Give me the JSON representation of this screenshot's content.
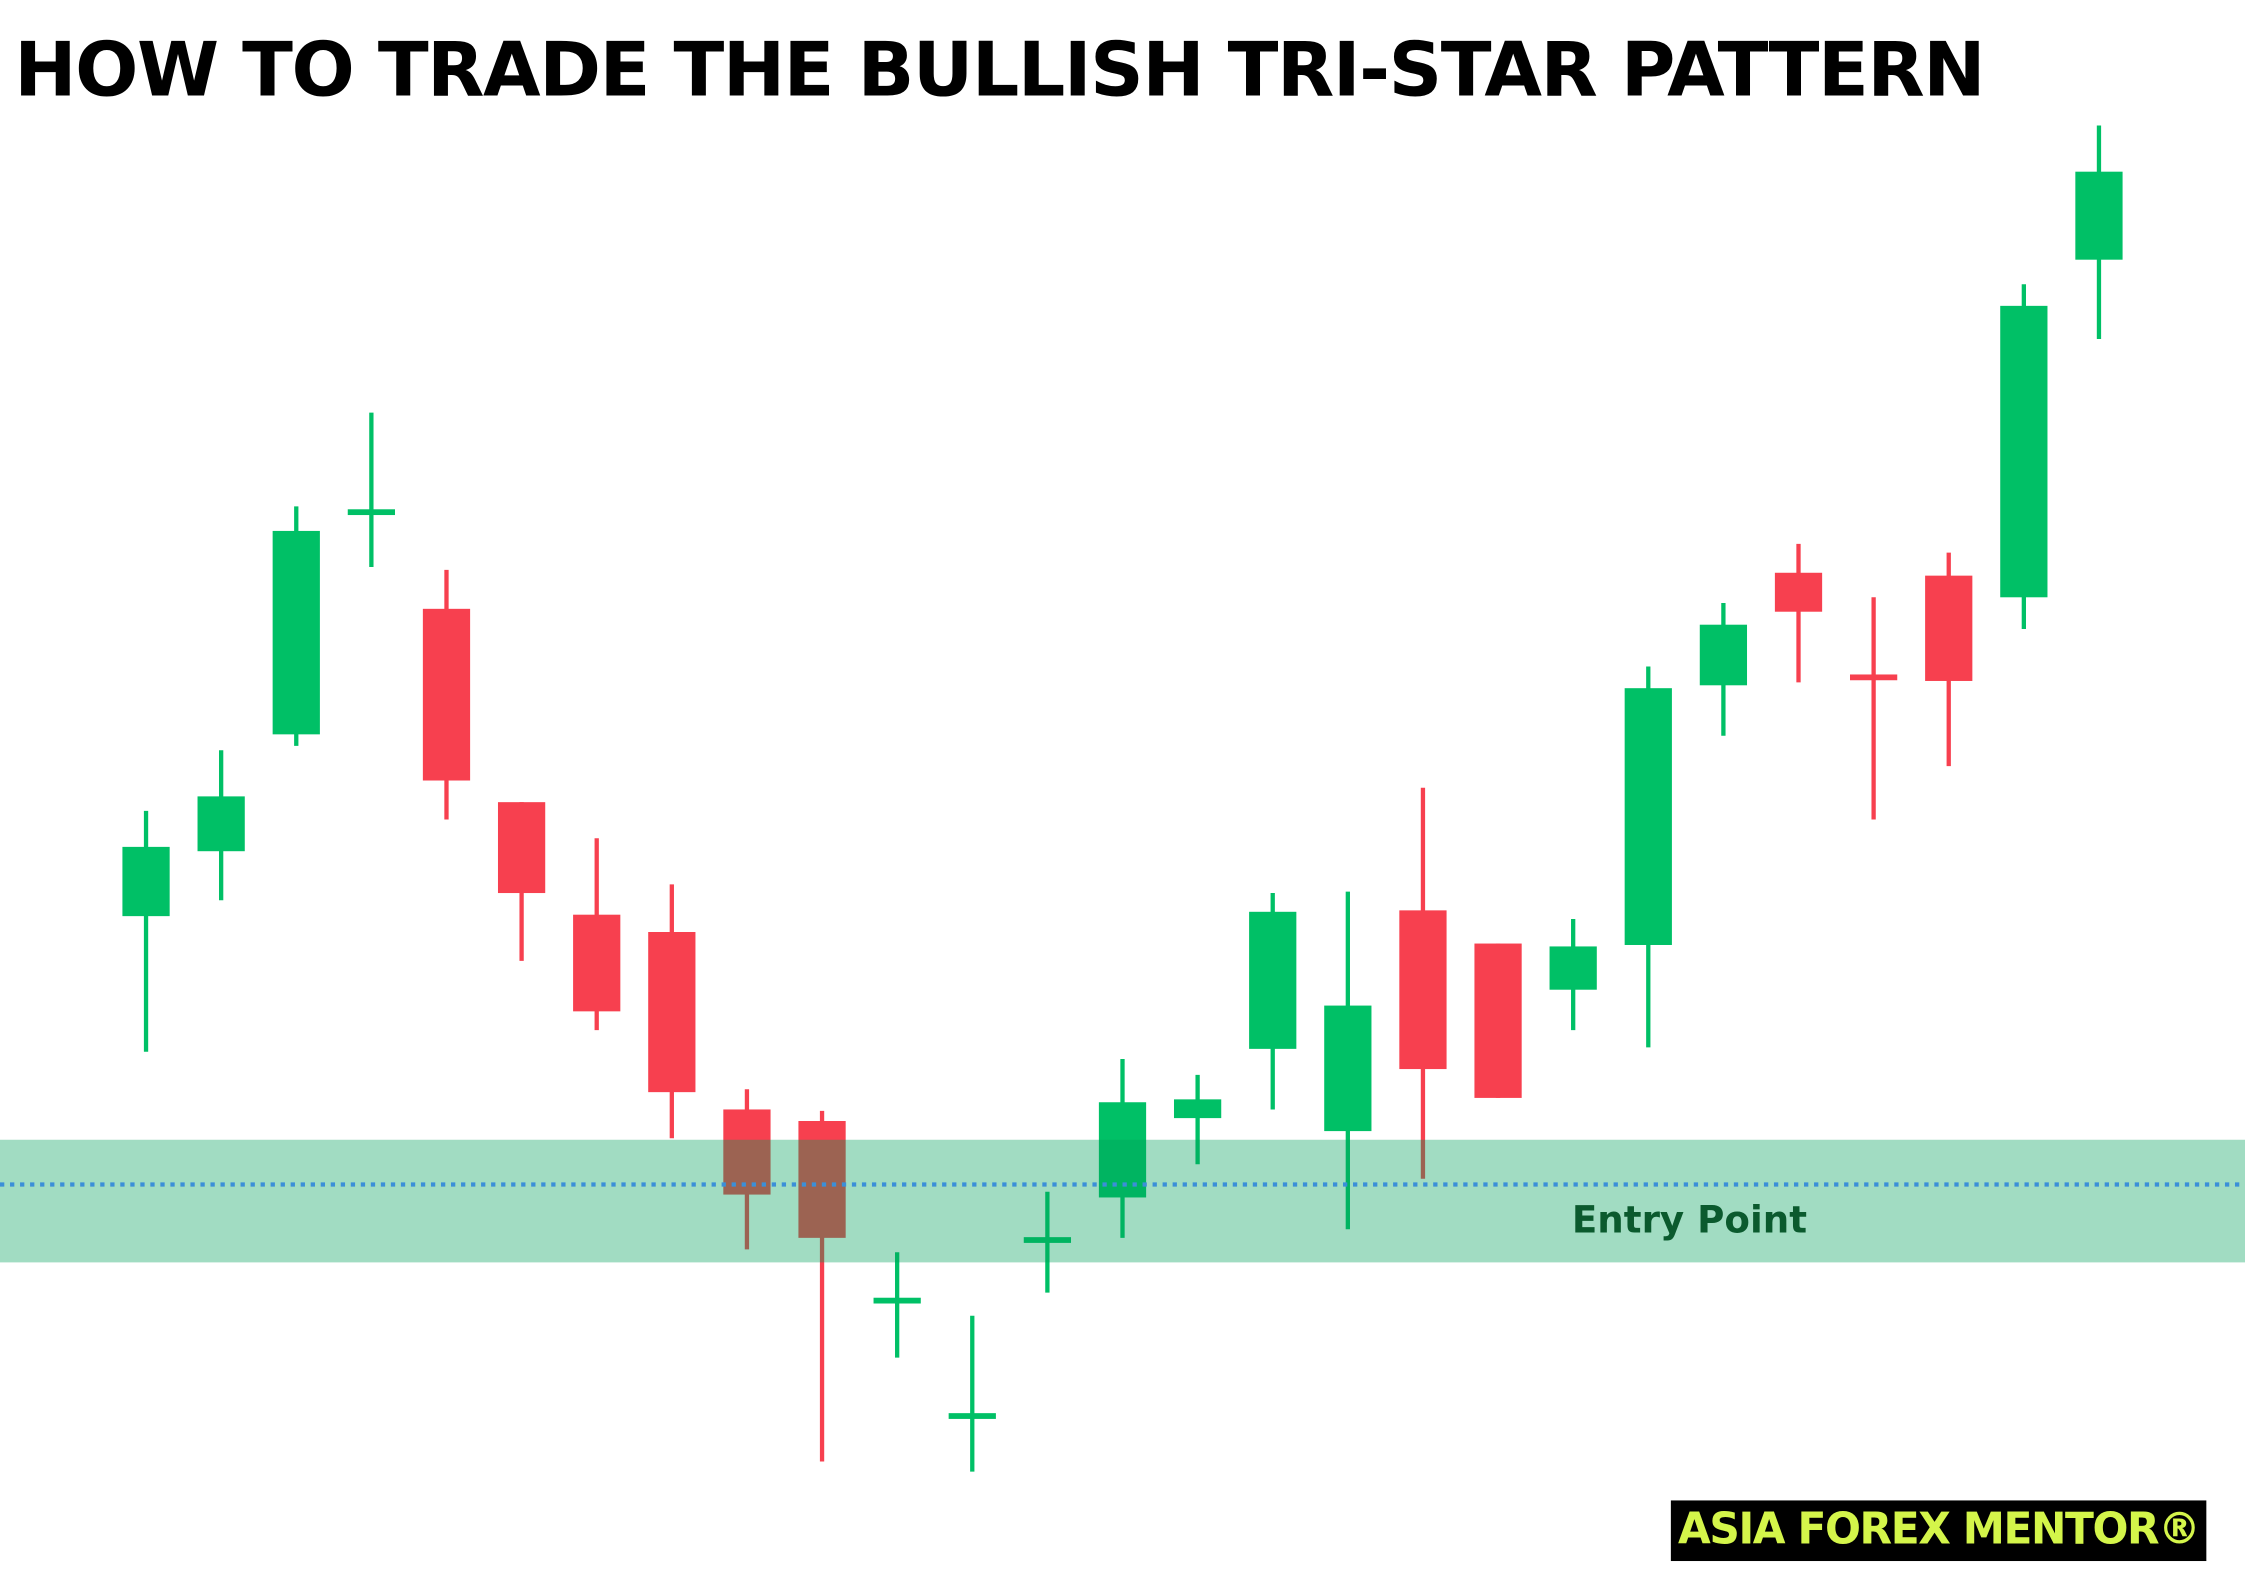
{
  "chart_data": {
    "type": "candlestick",
    "title": "HOW TO TRADE THE BULLISH TRI-STAR PATTERN",
    "ylim": [
      0,
      1100
    ],
    "up_color": "#00c066",
    "down_color": "#f7404f",
    "open": [
      465,
      510,
      591,
      743,
      678,
      544,
      466,
      454,
      331,
      323,
      197,
      117,
      239,
      270,
      325,
      373,
      316,
      469,
      446,
      414,
      445,
      625,
      703,
      632,
      701,
      686,
      920
    ],
    "high": [
      538,
      580,
      749,
      814,
      705,
      544,
      519,
      487,
      345,
      330,
      232,
      188,
      274,
      366,
      355,
      481,
      482,
      554,
      446,
      463,
      638,
      682,
      723,
      686,
      717,
      903,
      1013
    ],
    "low": [
      371,
      476,
      583,
      707,
      532,
      434,
      386,
      311,
      234,
      87,
      159,
      80,
      204,
      242,
      293,
      331,
      248,
      283,
      339,
      386,
      374,
      590,
      627,
      532,
      569,
      664,
      865
    ],
    "close": [
      513,
      548,
      732,
      747,
      559,
      481,
      399,
      343,
      272,
      242,
      200,
      120,
      242,
      336,
      338,
      468,
      403,
      359,
      339,
      444,
      623,
      667,
      676,
      629,
      628,
      888,
      981
    ],
    "entry": {
      "label": "Entry Point",
      "value": 279,
      "zone": [
        225,
        310
      ],
      "line_color": "#3b8fd8",
      "zone_color": "#00a05a"
    },
    "brand": "ASIA FOREX MENTOR®"
  }
}
